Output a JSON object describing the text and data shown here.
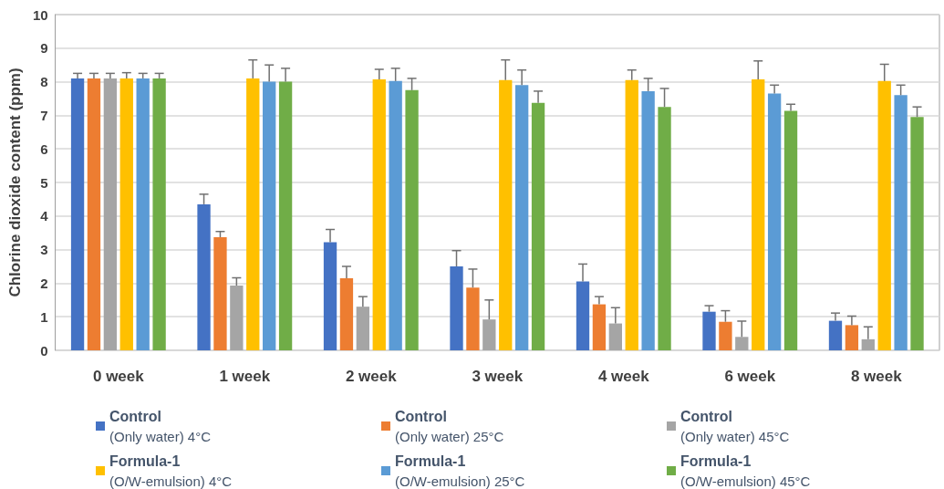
{
  "chart_data": {
    "type": "bar",
    "ylabel": "Chlorine dioxide content (ppm)",
    "categories": [
      "0 week",
      "1 week",
      "2 week",
      "3 week",
      "4 week",
      "6 week",
      "8 week"
    ],
    "ylim": [
      0,
      10
    ],
    "yticks": [
      0,
      1,
      2,
      3,
      4,
      5,
      6,
      7,
      8,
      9,
      10
    ],
    "grid": "y",
    "legend": "bottom",
    "series": [
      {
        "name": "Control\n(Only water) 4°C",
        "color": "#4472c4",
        "values": [
          8.1,
          4.35,
          3.22,
          2.5,
          2.05,
          1.15,
          0.88
        ],
        "errors": [
          0.15,
          0.3,
          0.38,
          0.47,
          0.52,
          0.18,
          0.23
        ]
      },
      {
        "name": "Control\n(Only water) 25°C",
        "color": "#ed7d31",
        "values": [
          8.1,
          3.37,
          2.15,
          1.87,
          1.37,
          0.85,
          0.75
        ],
        "errors": [
          0.15,
          0.17,
          0.35,
          0.55,
          0.23,
          0.33,
          0.27
        ]
      },
      {
        "name": "Control\n(Only water) 45°C",
        "color": "#a5a5a5",
        "values": [
          8.1,
          1.93,
          1.3,
          0.92,
          0.8,
          0.4,
          0.33
        ],
        "errors": [
          0.15,
          0.23,
          0.3,
          0.58,
          0.47,
          0.47,
          0.37
        ]
      },
      {
        "name": "Formula-1\n(O/W-emulsion) 4°C",
        "color": "#ffc000",
        "values": [
          8.1,
          8.1,
          8.07,
          8.05,
          8.05,
          8.07,
          8.02
        ],
        "errors": [
          0.17,
          0.55,
          0.3,
          0.6,
          0.3,
          0.55,
          0.5
        ]
      },
      {
        "name": "Formula-1\n(O/W-emulsion) 25°C",
        "color": "#5b9bd5",
        "values": [
          8.1,
          8.0,
          8.02,
          7.9,
          7.72,
          7.65,
          7.6
        ],
        "errors": [
          0.15,
          0.5,
          0.38,
          0.45,
          0.38,
          0.25,
          0.3
        ]
      },
      {
        "name": "Formula-1\n(O/W-emulsion) 45°C",
        "color": "#70ad47",
        "values": [
          8.1,
          8.0,
          7.75,
          7.37,
          7.25,
          7.13,
          6.95
        ],
        "errors": [
          0.15,
          0.4,
          0.35,
          0.35,
          0.55,
          0.2,
          0.3
        ]
      }
    ]
  }
}
